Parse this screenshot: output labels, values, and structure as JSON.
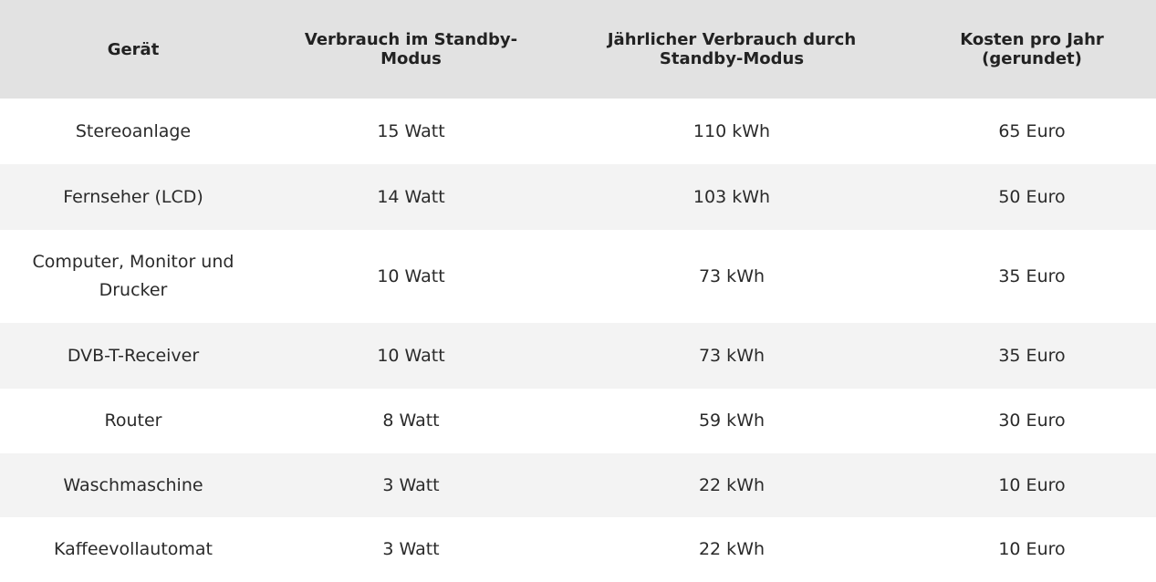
{
  "table": {
    "headers": [
      "Gerät",
      "Verbrauch im Standby-Modus",
      "Jährlicher Verbrauch durch Standby-Modus",
      "Kosten pro Jahr (gerundet)"
    ],
    "rows": [
      [
        "Stereoanlage",
        "15 Watt",
        "110 kWh",
        "65 Euro"
      ],
      [
        "Fernseher (LCD)",
        "14 Watt",
        "103 kWh",
        "50 Euro"
      ],
      [
        "Computer, Monitor und Drucker",
        "10 Watt",
        "73 kWh",
        "35 Euro"
      ],
      [
        "DVB-T-Receiver",
        "10 Watt",
        "73 kWh",
        "35 Euro"
      ],
      [
        "Router",
        "8 Watt",
        "59 kWh",
        "30 Euro"
      ],
      [
        "Waschmaschine",
        "3 Watt",
        "22 kWh",
        "10 Euro"
      ],
      [
        "Kaffeevollautomat",
        "3 Watt",
        "22 kWh",
        "10 Euro"
      ]
    ]
  },
  "colors": {
    "header_background": "#e2e2e2",
    "striped_row_background": "#f3f3f3",
    "text": "#222222"
  }
}
